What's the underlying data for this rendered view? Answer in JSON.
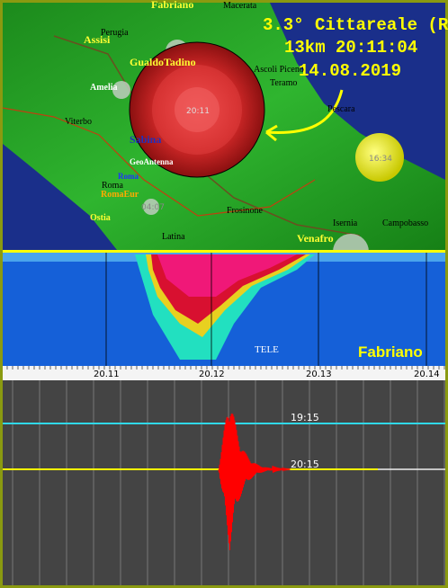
{
  "map": {
    "headline": {
      "magnitude": "3.3°",
      "place": "Cittareale (RI)",
      "depth_time": "13km 20:11:04",
      "date": "14.08.2019"
    },
    "labels": [
      "Fabriano",
      "Macerata",
      "Perugia",
      "Assisi",
      "GualdoTadino",
      "Ascoli Piceno",
      "Teramo",
      "Amelia",
      "Pescara",
      "Viterbo",
      "Sabina",
      "GeoAntenna",
      "Roma",
      "Roma",
      "RomaEur",
      "Ostia",
      "Frosinone",
      "Isernia",
      "Campobasso",
      "Latina",
      "Venafro"
    ],
    "event_times": [
      "20:11",
      "16:34",
      "04:07"
    ]
  },
  "spectrogram": {
    "station": "Fabriano",
    "tag": "TELE",
    "time_labels": [
      "20.11",
      "20.12",
      "20.13",
      "20.14"
    ]
  },
  "seismogram": {
    "trace_labels": [
      "19:15",
      "20:15"
    ]
  }
}
